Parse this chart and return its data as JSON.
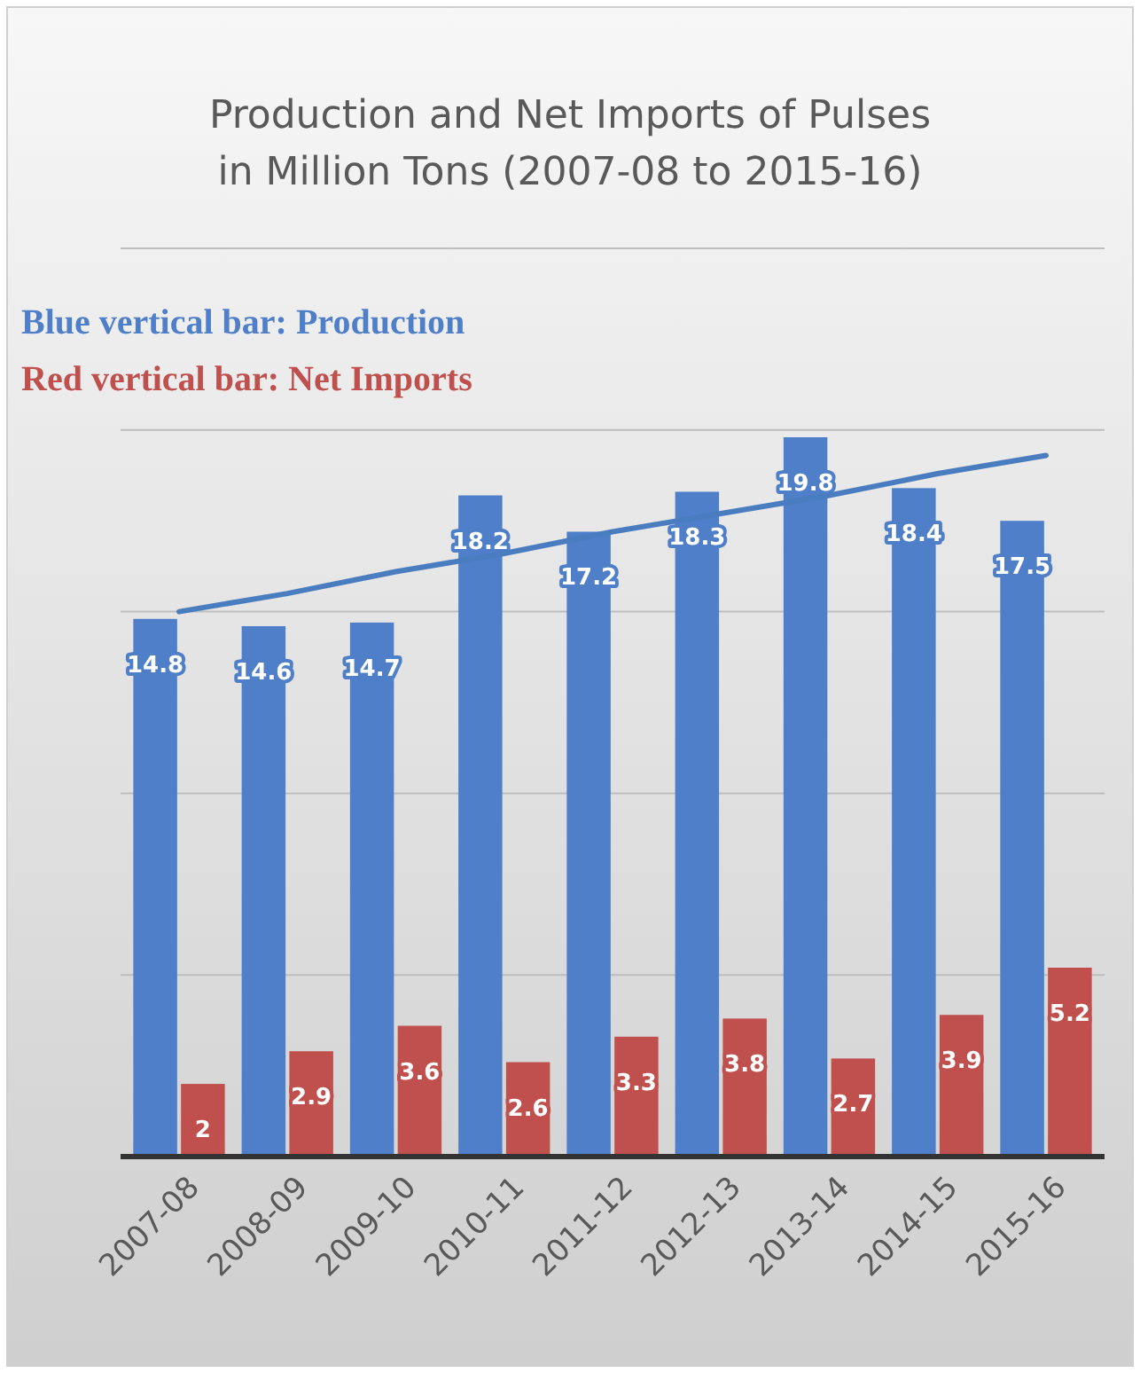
{
  "chart_data": {
    "type": "bar",
    "title": "Production and Net Imports of Pulses\nin Million Tons (2007-08 to 2015-16)",
    "categories": [
      "2007-08",
      "2008-09",
      "2009-10",
      "2010-11",
      "2011-12",
      "2012-13",
      "2013-14",
      "2014-15",
      "2015-16"
    ],
    "series": [
      {
        "name": "Blue vertical bar: Production",
        "color": "#4f7fc8",
        "values": [
          14.8,
          14.6,
          14.7,
          18.2,
          17.2,
          18.3,
          19.8,
          18.4,
          17.5
        ],
        "value_labels": [
          "14.8",
          "14.6",
          "14.7",
          "18.2",
          "17.2",
          "18.3",
          "19.8",
          "18.4",
          "17.5"
        ]
      },
      {
        "name": "Red vertical bar: Net Imports",
        "color": "#c0504d",
        "values": [
          2,
          2.9,
          3.6,
          2.6,
          3.3,
          3.8,
          2.7,
          3.9,
          5.2
        ],
        "value_labels": [
          "2",
          "2.9",
          "3.6",
          "2.6",
          "3.3",
          "3.8",
          "2.7",
          "3.9",
          "5.2"
        ]
      },
      {
        "type": "line",
        "color": "#4a7cc0",
        "values": [
          15.0,
          15.5,
          16.1,
          16.6,
          17.2,
          17.7,
          18.2,
          18.8,
          19.3
        ]
      }
    ],
    "ylim": [
      0,
      25
    ],
    "yticks": [
      {
        "value": 0,
        "label": null
      },
      {
        "value": 5,
        "label": null
      },
      {
        "value": 10,
        "label": null
      },
      {
        "value": 15,
        "label": null
      },
      {
        "value": 20,
        "label": null
      },
      {
        "value": 25,
        "label": null
      }
    ],
    "grid": "y",
    "legend": "top left",
    "tick_labels": "x"
  }
}
